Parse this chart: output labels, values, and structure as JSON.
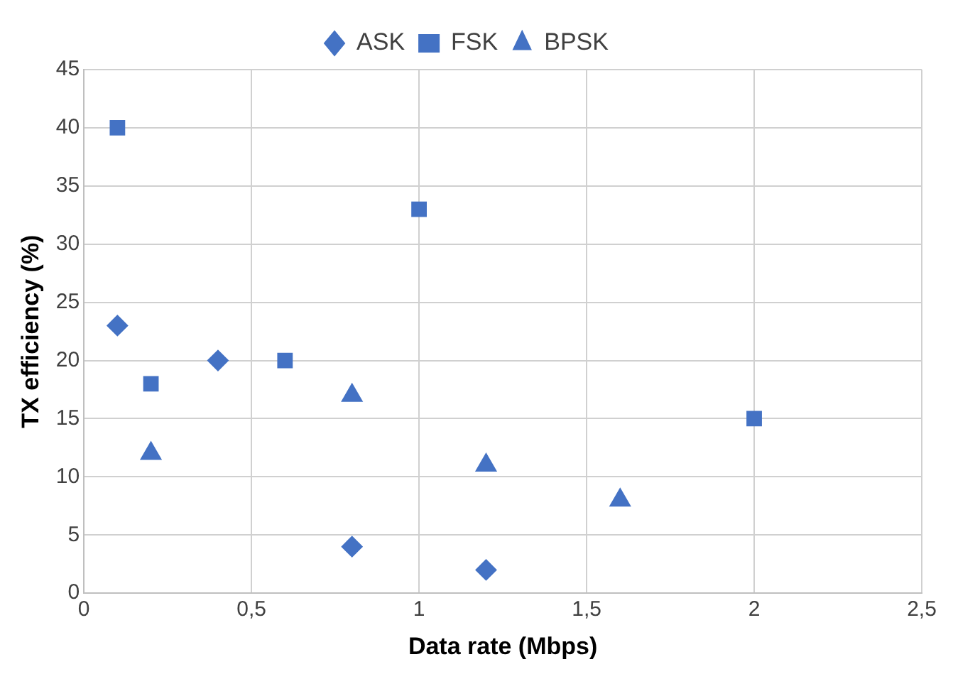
{
  "chart_data": {
    "type": "scatter",
    "xlabel": "Data rate (Mbps)",
    "ylabel": "TX efficiency (%)",
    "series": [
      {
        "name": "ASK",
        "color": "#4472c4",
        "marker": "diamond",
        "x": [
          0.1,
          0.4,
          0.8,
          1.2
        ],
        "values": [
          23,
          20,
          4,
          2
        ]
      },
      {
        "name": "FSK",
        "color": "#4472c4",
        "marker": "square",
        "x": [
          0.1,
          0.2,
          0.6,
          1,
          2
        ],
        "values": [
          40,
          18,
          20,
          33,
          15
        ]
      },
      {
        "name": "BPSK",
        "color": "#4472c4",
        "marker": "triangle",
        "x": [
          0.2,
          0.8,
          1.2,
          1.6
        ],
        "values": [
          12,
          17,
          11,
          8
        ]
      }
    ],
    "xlim": [
      0,
      2.5
    ],
    "xticks": [
      0,
      {
        "value": 0.5,
        "label": "0,5"
      },
      1,
      {
        "value": 1.5,
        "label": "1,5"
      },
      2,
      {
        "value": 2.5,
        "label": "2,5"
      }
    ],
    "ylim": [
      0,
      45
    ],
    "yticks": [
      0,
      5,
      10,
      15,
      20,
      25,
      30,
      35,
      40,
      45
    ],
    "grid": true,
    "legend": "top"
  }
}
